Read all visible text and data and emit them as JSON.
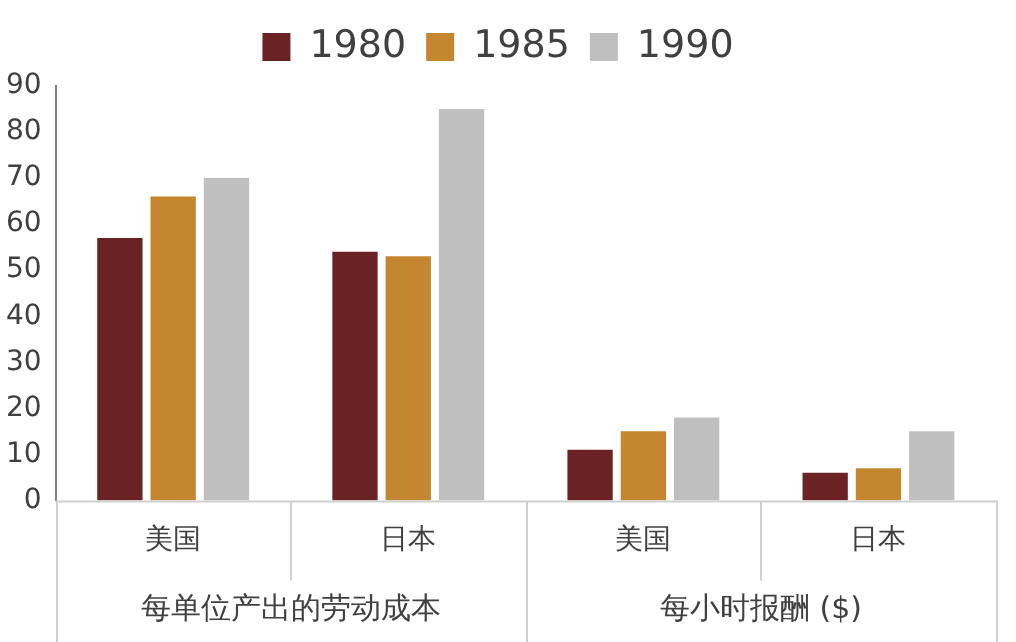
{
  "chart_data": {
    "type": "bar",
    "categories": [
      "美国",
      "日本",
      "美国",
      "日本"
    ],
    "series": [
      {
        "name": "1980",
        "color": "#6b2224",
        "values": [
          57,
          54,
          11,
          6
        ]
      },
      {
        "name": "1985",
        "color": "#c4862f",
        "values": [
          66,
          53,
          15,
          7
        ]
      },
      {
        "name": "1990",
        "color": "#bfbfbf",
        "values": [
          70,
          85,
          18,
          15
        ]
      }
    ],
    "ylim": [
      0,
      90
    ],
    "yticks": [
      0,
      10,
      20,
      30,
      40,
      50,
      60,
      70,
      80,
      90
    ],
    "grid": false,
    "legend": "top",
    "annotations": [
      "每单位产出的劳动成本",
      "每小时报酬 ($)"
    ]
  }
}
